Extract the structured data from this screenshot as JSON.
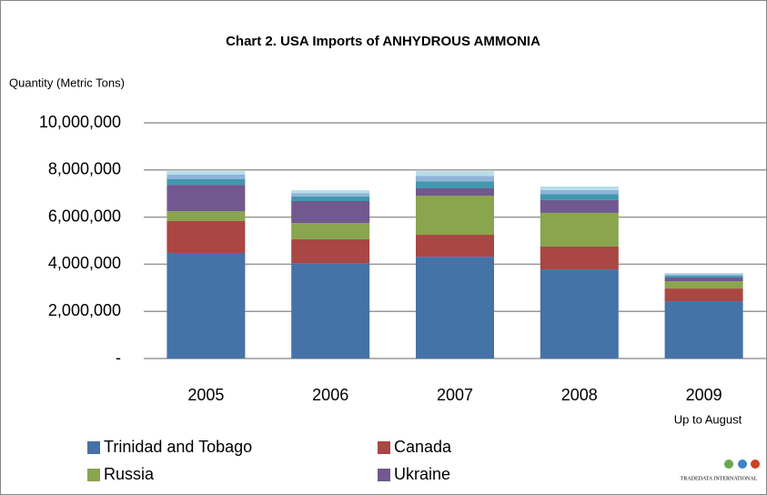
{
  "chart_data": {
    "type": "stacked_bar",
    "title": "Chart 2. USA  Imports of ANHYDROUS  AMMONIA",
    "y_axis_label": "Quantity (Metric Tons)",
    "categories": [
      "2005",
      "2006",
      "2007",
      "2008",
      "2009"
    ],
    "annotation": "Up to August",
    "logo_text": "TRADEDATA INTERNATIONAL",
    "series": [
      {
        "name": "Trinidad and Tobago",
        "color": "#4572a7",
        "values": [
          4480000,
          4050000,
          4320000,
          3780000,
          2430000
        ]
      },
      {
        "name": "Canada",
        "color": "#aa4643",
        "values": [
          1350000,
          1010000,
          930000,
          970000,
          540000
        ]
      },
      {
        "name": "Russia",
        "color": "#89a54e",
        "values": [
          420000,
          690000,
          1660000,
          1430000,
          310000
        ]
      },
      {
        "name": "Ukraine",
        "color": "#71588f",
        "values": [
          1120000,
          930000,
          310000,
          540000,
          160000
        ]
      },
      {
        "name": null,
        "color": "#4198af",
        "values": [
          250000,
          200000,
          300000,
          250000,
          80000
        ]
      },
      {
        "name": null,
        "color": "#8fb3d9",
        "values": [
          180000,
          140000,
          230000,
          180000,
          60000
        ]
      },
      {
        "name": null,
        "color": "#b7dee8",
        "values": [
          150000,
          120000,
          200000,
          150000,
          50000
        ]
      }
    ],
    "ylim": [
      0,
      10000000
    ],
    "yticks": [
      {
        "value": 0,
        "label": "-"
      },
      {
        "value": 2000000,
        "label": "2,000,000"
      },
      {
        "value": 4000000,
        "label": "4,000,000"
      },
      {
        "value": 6000000,
        "label": "6,000,000"
      },
      {
        "value": 8000000,
        "label": "8,000,000"
      },
      {
        "value": 10000000,
        "label": "10,000,000"
      }
    ],
    "grid": true
  }
}
